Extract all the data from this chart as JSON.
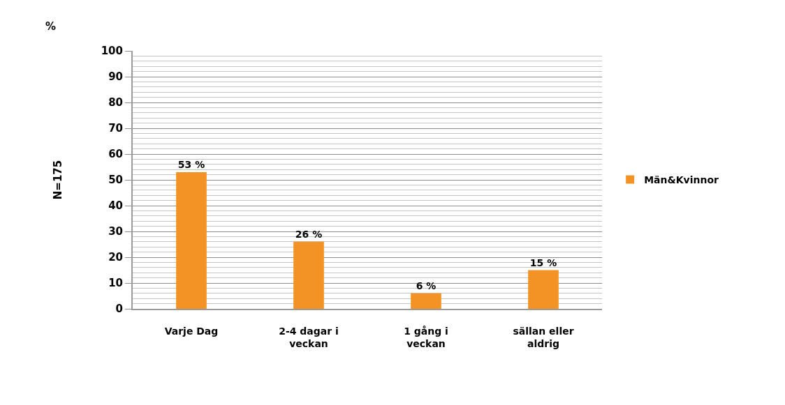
{
  "chart_data": {
    "type": "bar",
    "categories": [
      "Varje Dag",
      "2-4 dagar i veckan",
      "1 gång i veckan",
      "sällan eller aldrig"
    ],
    "series": [
      {
        "name": "Män&Kvinnor",
        "color": "#f39325",
        "values": [
          53,
          26,
          6,
          15
        ],
        "value_labels": [
          "53 %",
          "26 %",
          "6 %",
          "15 %"
        ]
      }
    ],
    "ylabel": "N=175",
    "annotations": [
      "%"
    ],
    "ylim": [
      0,
      100
    ],
    "yticks": [
      0,
      {
        "value": 2,
        "label": null
      },
      {
        "value": 4,
        "label": null
      },
      {
        "value": 6,
        "label": null
      },
      {
        "value": 8,
        "label": null
      },
      10,
      {
        "value": 12,
        "label": null
      },
      {
        "value": 14,
        "label": null
      },
      {
        "value": 16,
        "label": null
      },
      {
        "value": 18,
        "label": null
      },
      20,
      {
        "value": 22,
        "label": null
      },
      {
        "value": 24,
        "label": null
      },
      {
        "value": 26,
        "label": null
      },
      {
        "value": 28,
        "label": null
      },
      30,
      {
        "value": 32,
        "label": null
      },
      {
        "value": 34,
        "label": null
      },
      {
        "value": 36,
        "label": null
      },
      {
        "value": 38,
        "label": null
      },
      40,
      {
        "value": 42,
        "label": null
      },
      {
        "value": 44,
        "label": null
      },
      {
        "value": 46,
        "label": null
      },
      {
        "value": 48,
        "label": null
      },
      50,
      {
        "value": 52,
        "label": null
      },
      {
        "value": 54,
        "label": null
      },
      {
        "value": 56,
        "label": null
      },
      {
        "value": 58,
        "label": null
      },
      60,
      {
        "value": 62,
        "label": null
      },
      {
        "value": 64,
        "label": null
      },
      {
        "value": 66,
        "label": null
      },
      {
        "value": 68,
        "label": null
      },
      70,
      {
        "value": 72,
        "label": null
      },
      {
        "value": 74,
        "label": null
      },
      {
        "value": 76,
        "label": null
      },
      {
        "value": 78,
        "label": null
      },
      80,
      {
        "value": 82,
        "label": null
      },
      {
        "value": 84,
        "label": null
      },
      {
        "value": 86,
        "label": null
      },
      {
        "value": 88,
        "label": null
      },
      90,
      {
        "value": 92,
        "label": null
      },
      {
        "value": 94,
        "label": null
      },
      {
        "value": 96,
        "label": null
      },
      {
        "value": 98,
        "label": null
      },
      100
    ],
    "grid": "y",
    "legend": "right"
  }
}
